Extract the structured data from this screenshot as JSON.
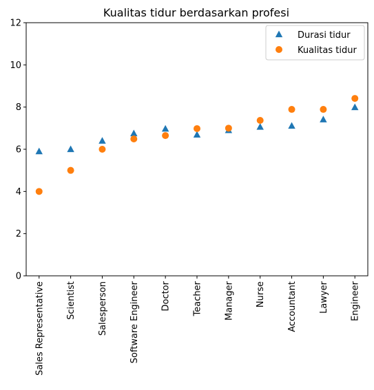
{
  "chart_data": {
    "type": "scatter",
    "title": "Kualitas tidur berdasarkan profesi",
    "xlabel": "",
    "ylabel": "",
    "categories": [
      "Sales Representative",
      "Scientist",
      "Salesperson",
      "Software Engineer",
      "Doctor",
      "Teacher",
      "Manager",
      "Nurse",
      "Accountant",
      "Lawyer",
      "Engineer"
    ],
    "ylim": [
      0,
      12
    ],
    "yticks": [
      0,
      2,
      4,
      6,
      8,
      10,
      12
    ],
    "grid": false,
    "legend_position": "top-right",
    "series": [
      {
        "name": "Durasi tidur",
        "marker": "triangle",
        "color": "#1f77b4",
        "values": [
          5.9,
          6.0,
          6.4,
          6.75,
          6.97,
          6.69,
          6.9,
          7.06,
          7.11,
          7.41,
          7.99
        ]
      },
      {
        "name": "Kualitas tidur",
        "marker": "circle",
        "color": "#ff7f0e",
        "values": [
          4.0,
          5.0,
          6.0,
          6.49,
          6.65,
          6.98,
          7.0,
          7.37,
          7.89,
          7.89,
          8.41
        ]
      }
    ]
  }
}
